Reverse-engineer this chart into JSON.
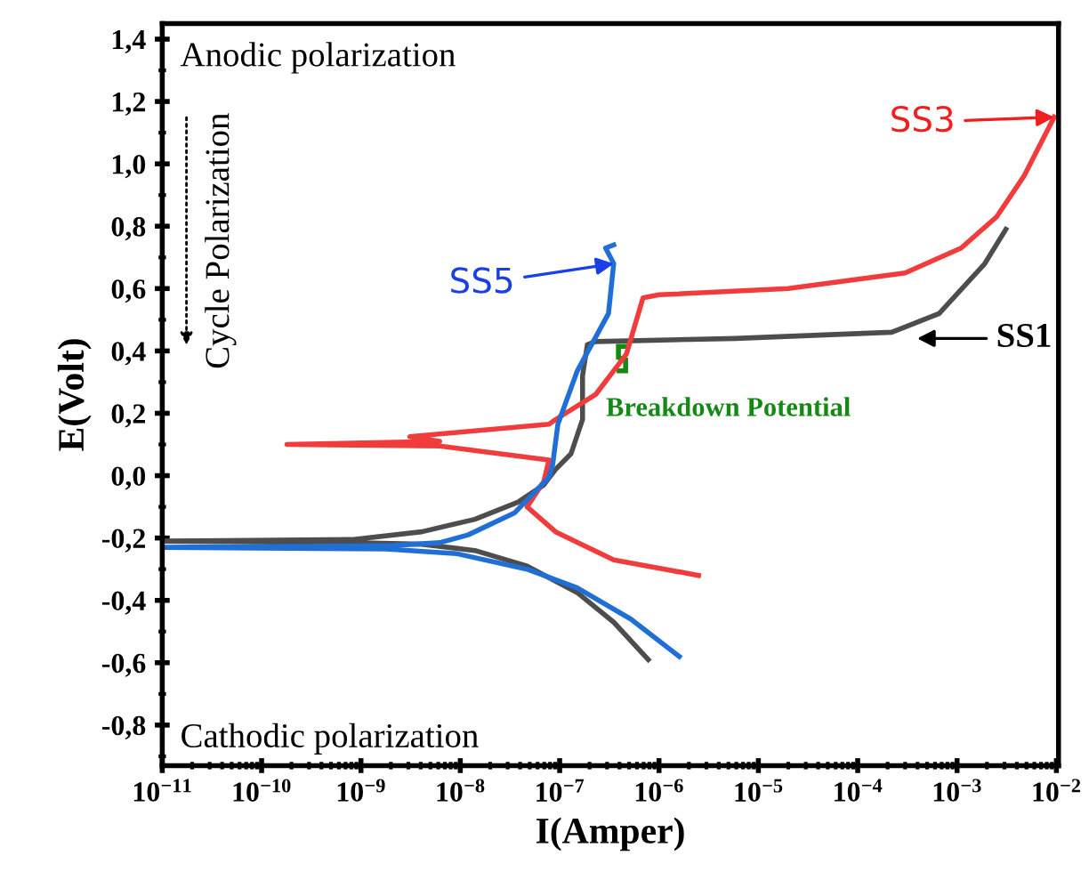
{
  "chart_data": {
    "type": "line",
    "xlabel": "I(Amper)",
    "ylabel": "E(Volt)",
    "log": "x",
    "grid": false,
    "legend": false,
    "marker": "none",
    "line_style": "solid",
    "xlim": [
      1e-11,
      0.0105
    ],
    "ylim": [
      -0.93,
      1.45
    ],
    "xticks": [
      {
        "value": 1e-11,
        "label": "10$^{−11}$"
      },
      {
        "value": 1e-10,
        "label": "10$^{−10}$"
      },
      {
        "value": 1e-09,
        "label": "10$^{−9}$"
      },
      {
        "value": 1e-08,
        "label": "10$^{−8}$"
      },
      {
        "value": 1e-07,
        "label": "10$^{−7}$"
      },
      {
        "value": 1e-06,
        "label": "10$^{−6}$"
      },
      {
        "value": 1e-05,
        "label": "10$^{−5}$"
      },
      {
        "value": 0.0001,
        "label": "10$^{−4}$"
      },
      {
        "value": 0.001,
        "label": "10$^{−3}$"
      },
      {
        "value": 0.01,
        "label": "10$^{−2}$"
      }
    ],
    "yticks": [
      {
        "value": -0.8,
        "label": "-0,8"
      },
      {
        "value": -0.6,
        "label": "-0,6"
      },
      {
        "value": -0.4,
        "label": "-0,4"
      },
      {
        "value": -0.2,
        "label": "-0,2"
      },
      {
        "value": 0.0,
        "label": "0,0"
      },
      {
        "value": 0.2,
        "label": "0,2"
      },
      {
        "value": 0.4,
        "label": "0,4"
      },
      {
        "value": 0.6,
        "label": "0,6"
      },
      {
        "value": 0.8,
        "label": "0,8"
      },
      {
        "value": 1.0,
        "label": "1,0"
      },
      {
        "value": 1.2,
        "label": "1,2"
      },
      {
        "value": 1.4,
        "label": "1,4"
      }
    ],
    "series": [
      {
        "name": "SS1",
        "color": "#4d4d4d",
        "x": [
          7.8e-07,
          3.5e-07,
          1.5e-07,
          4.7e-08,
          1.4e-08,
          4.1e-09,
          8.1e-10,
          1e-11,
          8.1e-10,
          4.1e-09,
          1.4e-08,
          3.8e-08,
          6.9e-08,
          9.1e-08,
          1.3e-07,
          1.7e-07,
          1.7e-07,
          1.9e-07,
          2.3e-07,
          5.9e-06,
          0.00022,
          0.00066,
          0.0019,
          0.0031
        ],
        "values": [
          -0.59,
          -0.47,
          -0.375,
          -0.29,
          -0.24,
          -0.22,
          -0.215,
          -0.21,
          -0.205,
          -0.18,
          -0.14,
          -0.085,
          -0.03,
          0.02,
          0.07,
          0.18,
          0.32,
          0.42,
          0.43,
          0.44,
          0.46,
          0.52,
          0.68,
          0.79
        ]
      },
      {
        "name": "SS3",
        "color": "#f03c3c",
        "x": [
          2.5e-06,
          3.5e-07,
          9.1e-08,
          4.7e-08,
          6.9e-08,
          7.8e-08,
          6.2e-09,
          1.8e-10,
          6.2e-09,
          3.1e-09,
          7.8e-08,
          9.1e-08,
          2.3e-07,
          4.7e-07,
          6.9e-07,
          1e-06,
          2e-05,
          0.0003,
          0.0011,
          0.0025,
          0.0047,
          0.0095
        ],
        "values": [
          -0.32,
          -0.27,
          -0.18,
          -0.1,
          -0.02,
          0.05,
          0.095,
          0.1,
          0.11,
          0.125,
          0.165,
          0.18,
          0.26,
          0.39,
          0.57,
          0.58,
          0.6,
          0.65,
          0.73,
          0.83,
          0.96,
          1.15
        ]
      },
      {
        "name": "SS5",
        "color": "#1f6fd6",
        "x": [
          1.6e-06,
          5.2e-07,
          1.5e-07,
          4.7e-08,
          9.1e-09,
          1.8e-09,
          1e-11,
          1.8e-09,
          6.2e-09,
          1.2e-08,
          3.5e-08,
          7.8e-08,
          8.5e-08,
          9.6e-08,
          1.5e-07,
          3.1e-07,
          3.5e-07,
          2.9e-07,
          3.5e-07
        ],
        "values": [
          -0.58,
          -0.46,
          -0.36,
          -0.3,
          -0.25,
          -0.235,
          -0.23,
          -0.225,
          -0.215,
          -0.19,
          -0.12,
          -0.005,
          0.035,
          0.165,
          0.335,
          0.52,
          0.68,
          0.73,
          0.74
        ]
      }
    ],
    "annotations": [
      "Anodic polarization",
      "Cathodic polarization",
      "Cycle Polarization",
      "Breakdown Potential"
    ]
  }
}
